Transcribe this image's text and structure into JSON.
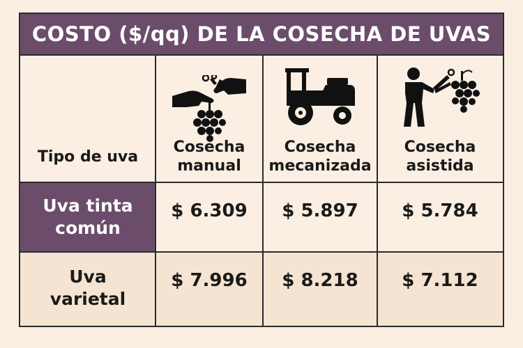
{
  "title": "COSTO ($/qq) DE LA COSECHA DE UVAS",
  "header": {
    "row_label": "Tipo de uva",
    "columns": [
      {
        "label": "Cosecha manual",
        "line1": "Cosecha",
        "line2": "manual",
        "icon": "hand-picking-grapes-icon"
      },
      {
        "label": "Cosecha mecanizada",
        "line1": "Cosecha",
        "line2": "mecanizada",
        "icon": "harvester-machine-icon"
      },
      {
        "label": "Cosecha asistida",
        "line1": "Cosecha",
        "line2": "asistida",
        "icon": "worker-with-shears-icon"
      }
    ]
  },
  "rows": [
    {
      "label_line1": "Uva tinta",
      "label_line2": "común",
      "values": [
        "$ 6.309",
        "$ 5.897",
        "$ 5.784"
      ]
    },
    {
      "label_line1": "Uva",
      "label_line2": "varietal",
      "values": [
        "$ 7.996",
        "$ 8.218",
        "$ 7.112"
      ]
    }
  ],
  "colors": {
    "accent": "#6b4d6b",
    "background": "#fbefe3",
    "row_alt": "#f6e4d3",
    "text": "#1a1a1a"
  }
}
